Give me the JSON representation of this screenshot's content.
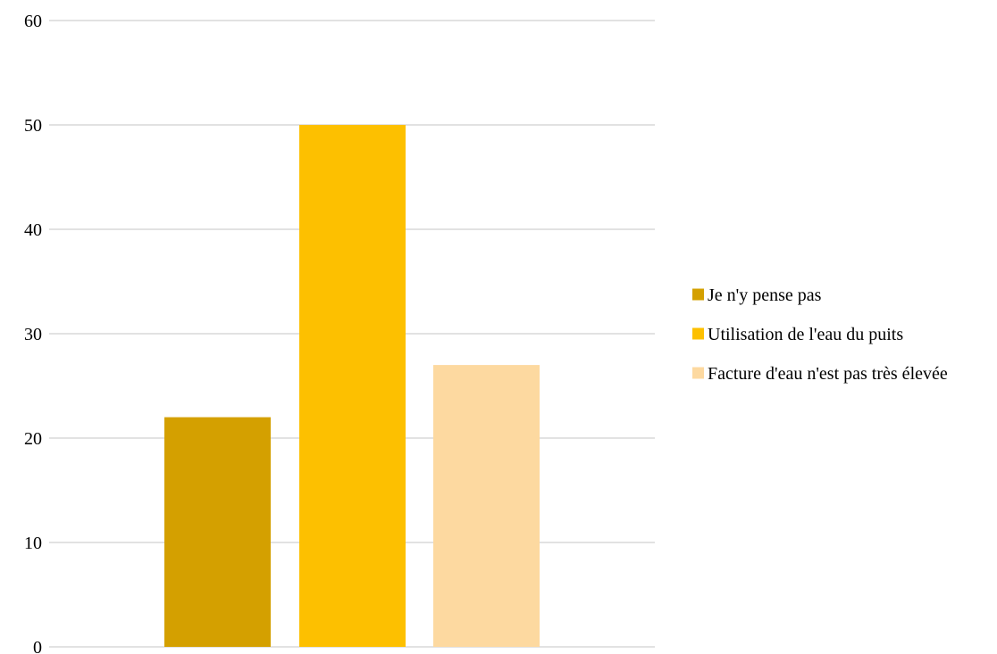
{
  "chart_data": {
    "type": "bar",
    "title": "",
    "xlabel": "",
    "ylabel": "",
    "ylim": [
      0,
      60
    ],
    "y_ticks": [
      0,
      10,
      20,
      30,
      40,
      50,
      60
    ],
    "grid": true,
    "legend_position": "right",
    "series": [
      {
        "name": "Je n'y pense pas",
        "value": 22,
        "color": "#d4a000"
      },
      {
        "name": "Utilisation de l'eau du puits",
        "value": 50,
        "color": "#fdc000"
      },
      {
        "name": "Facture d'eau n'est pas très élevée",
        "value": 27,
        "color": "#fdd9a0"
      }
    ]
  }
}
